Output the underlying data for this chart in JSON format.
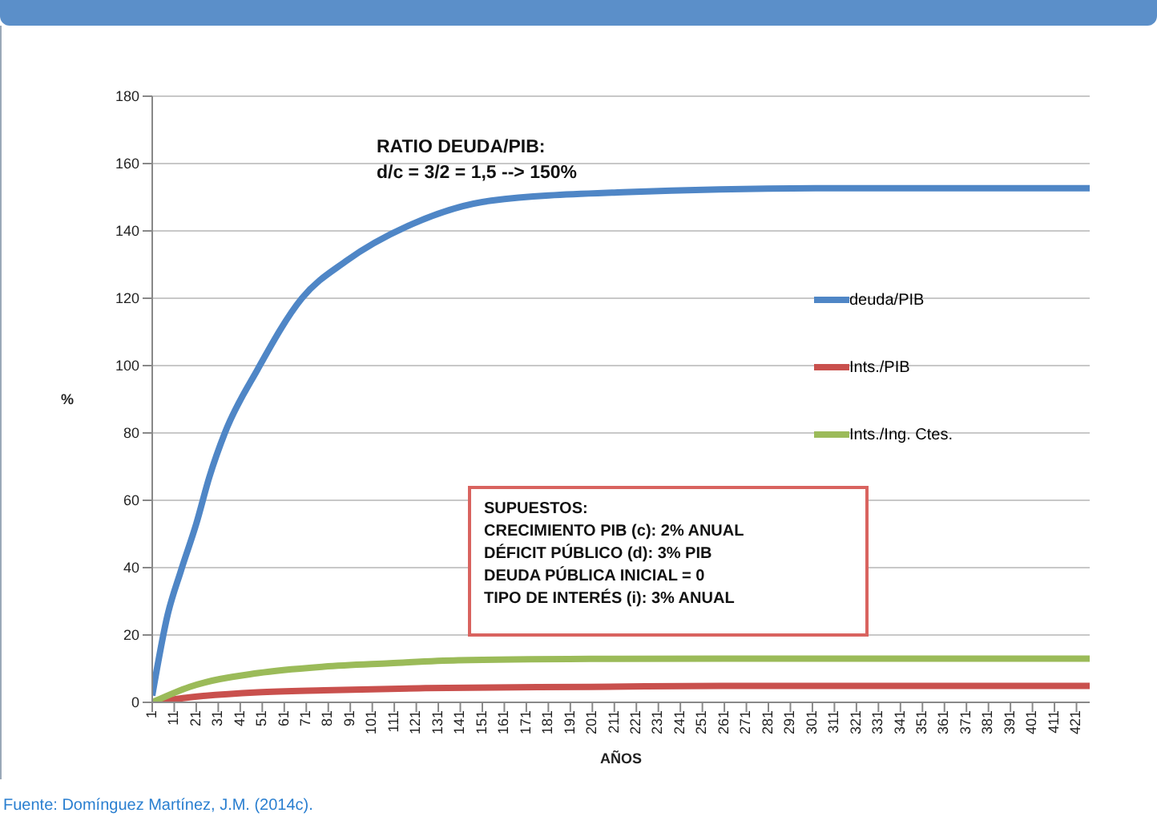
{
  "chart_data": {
    "type": "line",
    "xlabel": "AÑOS",
    "ylabel": "%",
    "xlim": [
      1,
      427
    ],
    "xticks": [
      1,
      11,
      21,
      31,
      41,
      51,
      61,
      71,
      81,
      91,
      101,
      111,
      121,
      131,
      141,
      151,
      161,
      171,
      181,
      191,
      201,
      211,
      221,
      231,
      241,
      251,
      261,
      271,
      281,
      291,
      301,
      311,
      321,
      331,
      341,
      351,
      361,
      371,
      381,
      391,
      401,
      411,
      421
    ],
    "ylim": [
      0,
      180
    ],
    "yticks": [
      0,
      20,
      40,
      60,
      80,
      100,
      120,
      140,
      160,
      180
    ],
    "grid": "y",
    "legend": "right",
    "series": [
      {
        "name": "deuda/PIB",
        "color": "#4f86c6",
        "x": [
          1,
          8,
          14,
          21,
          27,
          34,
          49,
          69,
          89,
          119,
          155,
          215,
          309,
          427
        ],
        "values": [
          2,
          26,
          39,
          53,
          67,
          80,
          99,
          120,
          131,
          142,
          149,
          151.5,
          152.7,
          152.7
        ]
      },
      {
        "name": "Ints./PIB",
        "color": "#c9504d",
        "x": [
          1,
          18,
          49,
          79,
          125,
          200,
          260,
          427
        ],
        "values": [
          0,
          1.5,
          3,
          3.6,
          4.2,
          4.6,
          4.9,
          4.9
        ]
      },
      {
        "name": "Ints./Ing. Ctes.",
        "color": "#9bbb59",
        "x": [
          1,
          18,
          49,
          79,
          109,
          140,
          200,
          260,
          427
        ],
        "values": [
          0,
          4.6,
          8.7,
          10.6,
          11.6,
          12.5,
          12.9,
          13,
          13
        ]
      }
    ],
    "annotations": [
      "RATIO DEUDA/PIB:\nd/c = 3/2 = 1,5 --> 150%",
      "SUPUESTOS:\nCRECIMIENTO PIB (c): 2% ANUAL\nDÉFICIT PÚBLICO (d): 3% PIB\nDEUDA PÚBLICA INICIAL = 0\nTIPO DE INTERÉS (i): 3% ANUAL",
      "Fuente: Domínguez Martínez, J.M. (2014c)."
    ]
  }
}
